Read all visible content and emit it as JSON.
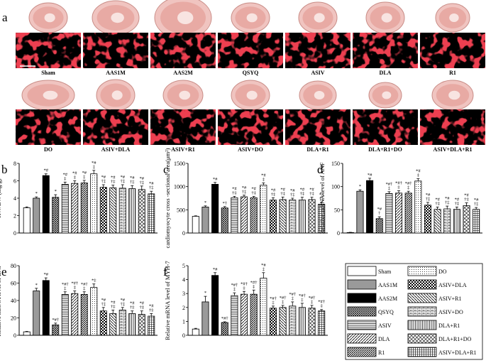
{
  "panel_letters": {
    "a": "a",
    "b": "b",
    "c": "c",
    "d": "d",
    "e": "e",
    "f": "f"
  },
  "colors": {
    "cell_red": "#d8141e",
    "heart_pink": "#f2c7c3",
    "black": "#000000"
  },
  "groups_row1": [
    "Sham",
    "AAS1M",
    "AAS2M",
    "QSYQ",
    "ASIV",
    "DLA",
    "R1"
  ],
  "groups_row2": [
    "DO",
    "ASIV+DLA",
    "ASIV+R1",
    "ASIV+DO",
    "DLA+R1",
    "DLA+R1+DO",
    "ASIV+DLA+R1"
  ],
  "legend": [
    {
      "name": "Sham",
      "pattern": "white"
    },
    {
      "name": "DO",
      "pattern": "dots"
    },
    {
      "name": "AAS1M",
      "pattern": "gray"
    },
    {
      "name": "ASIV+DLA",
      "pattern": "checker"
    },
    {
      "name": "AAS2M",
      "pattern": "black"
    },
    {
      "name": "ASIV+R1",
      "pattern": "bdiag"
    },
    {
      "name": "QSYQ",
      "pattern": "cross"
    },
    {
      "name": "ASIV+DO",
      "pattern": "brick"
    },
    {
      "name": "ASIV",
      "pattern": "hlines"
    },
    {
      "name": "DLA+R1",
      "pattern": "vlines"
    },
    {
      "name": "DLA",
      "pattern": "fdiag"
    },
    {
      "name": "DLA+R1+DO",
      "pattern": "diamond"
    },
    {
      "name": "R1",
      "pattern": "fdiag2"
    },
    {
      "name": "ASIV+DLA+R1",
      "pattern": "grid"
    }
  ],
  "bar_patterns": [
    "white",
    "gray",
    "black",
    "cross",
    "hlines",
    "fdiag",
    "fdiag2",
    "dots",
    "checker",
    "bdiag",
    "brick",
    "vlines",
    "diamond",
    "grid"
  ],
  "chart_data": [
    {
      "id": "b",
      "type": "bar",
      "ylabel": "HW/BW (mg/g)",
      "ylim": [
        0,
        8
      ],
      "yticks": [
        "0",
        "2",
        "4",
        "6",
        "8"
      ],
      "values": [
        2.9,
        4.0,
        6.6,
        4.1,
        5.6,
        5.7,
        5.75,
        6.8,
        5.25,
        5.2,
        5.15,
        5.1,
        5.0,
        4.5
      ],
      "errors": [
        0.1,
        0.15,
        0.2,
        0.3,
        0.25,
        0.3,
        0.3,
        0.4,
        0.3,
        0.3,
        0.4,
        0.35,
        0.4,
        0.3
      ],
      "annotations": [
        "",
        "*",
        "*#",
        "*",
        "*#\n‡",
        "*#\n‡",
        "*#\n‡",
        "*#\n‡",
        "*#\n†‡",
        "*#\n†‡",
        "*#\n†‡",
        "*#\n†‡",
        "*#\n†‡",
        "*#\n†‡"
      ]
    },
    {
      "id": "c",
      "type": "bar",
      "ylabel": "cardiomyocyte cross -sectional area(μm²)",
      "ylim": [
        0,
        1500
      ],
      "yticks": [
        "0",
        "500",
        "1000",
        "1500"
      ],
      "values": [
        360,
        560,
        1050,
        540,
        760,
        780,
        760,
        1030,
        710,
        720,
        710,
        710,
        720,
        620
      ],
      "errors": [
        10,
        25,
        40,
        30,
        30,
        35,
        30,
        50,
        50,
        55,
        40,
        60,
        50,
        40
      ],
      "annotations": [
        "",
        "*",
        "*#",
        "*†",
        "*#\n†‡",
        "*#\n†‡",
        "*#\n†‡",
        "*#\n‡",
        "*#\n†‡",
        "*#\n†‡",
        "*#\n†‡",
        "*#\n†‡",
        "*#\n†‡",
        "*#\n†‡"
      ]
    },
    {
      "id": "d",
      "type": "bar",
      "ylabel": "Relative mRNA level of ANF",
      "ylim": [
        0,
        150
      ],
      "yticks": [
        "0",
        "50",
        "100",
        "150"
      ],
      "values": [
        1,
        90,
        113,
        31,
        85,
        86,
        86,
        112,
        60,
        51,
        52,
        51,
        59,
        51
      ],
      "errors": [
        0.5,
        3,
        5,
        4,
        4,
        5,
        4,
        5,
        6,
        5,
        6,
        5,
        6,
        4
      ],
      "annotations": [
        "",
        "*",
        "*#",
        "*#\n†",
        "*#†\n‡",
        "*#†\n‡",
        "*#†\n‡",
        "*#\n‡",
        "*#\n†‡",
        "*#\n†‡",
        "*#\n†‡",
        "*#\n†‡",
        "*#\n†‡",
        "*#\n†‡"
      ]
    },
    {
      "id": "e",
      "type": "bar",
      "ylabel": "Relative mRNA level of BNP",
      "ylim": [
        0,
        80
      ],
      "yticks": [
        "0",
        "20",
        "40",
        "60",
        "80"
      ],
      "values": [
        4,
        51,
        63,
        12,
        47,
        48,
        47,
        55,
        28,
        25,
        29,
        25,
        24,
        22
      ],
      "errors": [
        0.5,
        3,
        3,
        2,
        3,
        3,
        3,
        4,
        4,
        4,
        3,
        3,
        4,
        3
      ],
      "annotations": [
        "",
        "*",
        "*#",
        "*#†",
        "*#†\n‡",
        "*#†\n‡",
        "*#†\n‡",
        "*‡",
        "*#\n†‡",
        "*#\n†‡",
        "*#\n†‡",
        "*#\n†‡",
        "*#\n†‡",
        "*#\n†‡"
      ]
    },
    {
      "id": "f",
      "type": "bar",
      "ylabel": "Relative mRNA level of MYH-7",
      "ylim": [
        0,
        5
      ],
      "yticks": [
        "0",
        "1",
        "2",
        "3",
        "4",
        "5"
      ],
      "values": [
        0.45,
        2.4,
        4.3,
        0.92,
        2.85,
        2.95,
        2.95,
        4.1,
        1.95,
        2.0,
        2.1,
        2.0,
        1.95,
        1.75
      ],
      "errors": [
        0.05,
        0.4,
        0.2,
        0.05,
        0.2,
        0.2,
        0.3,
        0.4,
        0.15,
        0.15,
        0.3,
        0.3,
        0.2,
        0.1
      ],
      "annotations": [
        "",
        "*",
        "*#",
        "*#†",
        "*#†\n‡",
        "*#†\n‡",
        "*#†\n‡",
        "*#\n‡",
        "*#†\n‡",
        "*#†\n‡",
        "*#†\n‡",
        "*#†\n‡",
        "*#†\n‡",
        "*#†\n‡"
      ]
    }
  ]
}
